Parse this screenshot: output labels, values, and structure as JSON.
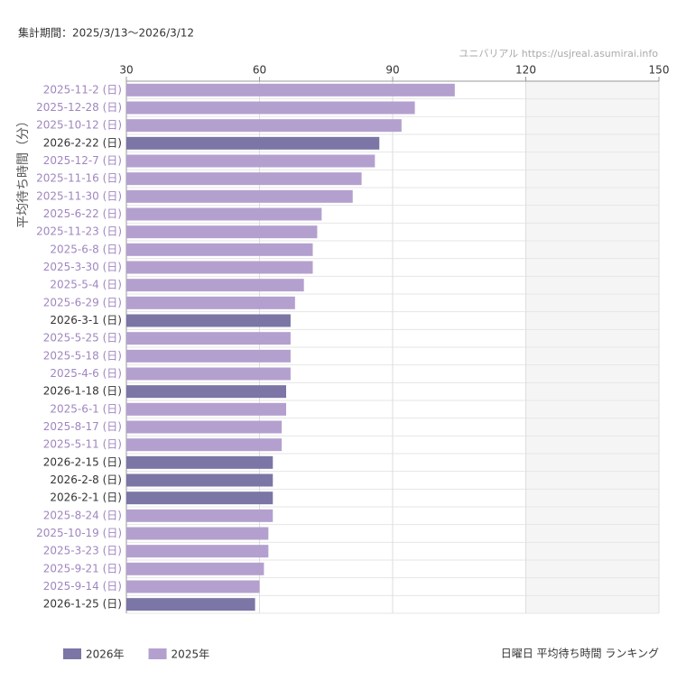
{
  "chart_data": {
    "type": "bar",
    "orientation": "horizontal",
    "period_label": "集計期間：2025/3/13〜2026/3/12",
    "source": "ユニバリアル  https://usjreal.asumirai.info",
    "y_label": "平均待ち時間（分）",
    "caption": "日曜日 平均待ち時間 ランキング",
    "categories": [
      "2025-11-2 (日)",
      "2025-12-28 (日)",
      "2025-10-12 (日)",
      "2026-2-22 (日)",
      "2025-12-7 (日)",
      "2025-11-16 (日)",
      "2025-11-30 (日)",
      "2025-6-22 (日)",
      "2025-11-23 (日)",
      "2025-6-8 (日)",
      "2025-3-30 (日)",
      "2025-5-4 (日)",
      "2025-6-29 (日)",
      "2026-3-1 (日)",
      "2025-5-25 (日)",
      "2025-5-18 (日)",
      "2025-4-6 (日)",
      "2026-1-18 (日)",
      "2025-6-1 (日)",
      "2025-8-17 (日)",
      "2025-5-11 (日)",
      "2026-2-15 (日)",
      "2026-2-8 (日)",
      "2026-2-1 (日)",
      "2025-8-24 (日)",
      "2025-10-19 (日)",
      "2025-3-23 (日)",
      "2025-9-21 (日)",
      "2025-9-14 (日)",
      "2026-1-25 (日)"
    ],
    "series": [
      {
        "name": "2026年",
        "color": "#7b76a5",
        "label_color": "#333333",
        "values": [
          null,
          null,
          null,
          87,
          null,
          null,
          null,
          null,
          null,
          null,
          null,
          null,
          null,
          67,
          null,
          null,
          null,
          66,
          null,
          null,
          null,
          63,
          63,
          63,
          null,
          null,
          null,
          null,
          null,
          59
        ]
      },
      {
        "name": "2025年",
        "color": "#b4a0cf",
        "label_color": "#a086c0",
        "values": [
          104,
          95,
          92,
          null,
          86,
          83,
          81,
          74,
          73,
          72,
          72,
          70,
          68,
          null,
          67,
          67,
          67,
          null,
          66,
          65,
          65,
          null,
          null,
          null,
          63,
          62,
          62,
          61,
          60,
          null
        ]
      }
    ],
    "xlim": [
      30,
      150
    ],
    "xticks": [
      30,
      60,
      90,
      120,
      150
    ],
    "shaded_xrange": [
      120,
      150
    ],
    "grid": true
  }
}
